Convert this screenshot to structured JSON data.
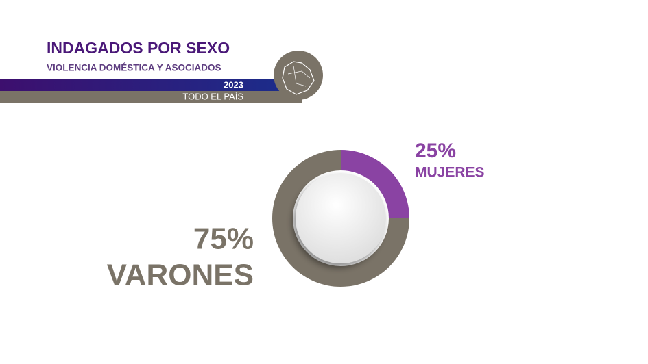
{
  "chart_data": {
    "type": "donut",
    "title": "INDAGADOS POR SEXO",
    "subtitle": "VIOLENCIA DOMÉSTICA Y ASOCIADOS",
    "year": "2023",
    "region": "TODO EL PAÍS",
    "categories": [
      "MUJERES",
      "VARONES"
    ],
    "values": [
      25,
      75
    ],
    "value_labels": [
      "25%",
      "75%"
    ],
    "colors": [
      "#8a43a3",
      "#7a7367"
    ]
  }
}
